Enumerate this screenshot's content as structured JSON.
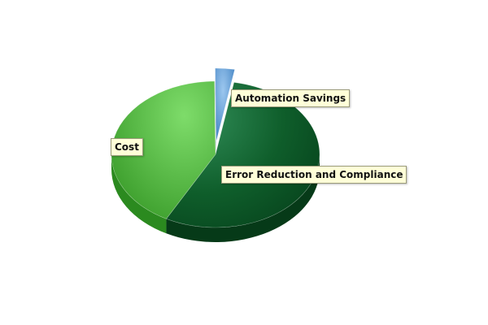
{
  "chart_data": {
    "type": "pie",
    "title": "",
    "labels": [
      "Automation Savings",
      "Error Reduction and Compliance",
      "Cost"
    ],
    "values": [
      3,
      55,
      42
    ],
    "exploded": [
      true,
      false,
      false
    ],
    "colors": [
      "#5b9bd5",
      "#0f6b2d",
      "#4caf3c"
    ],
    "legend": "none",
    "style": "3d"
  }
}
